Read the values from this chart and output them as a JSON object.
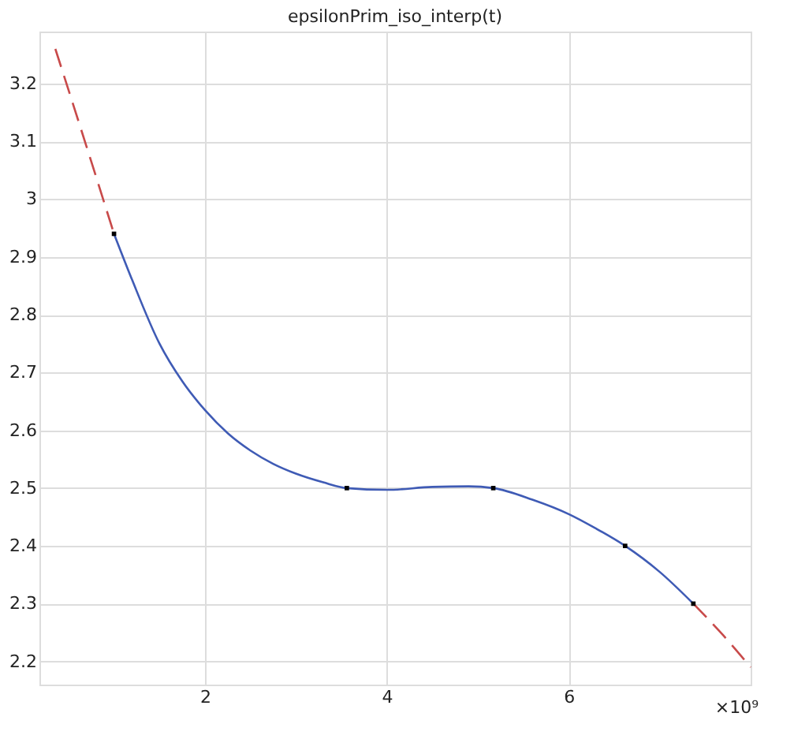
{
  "chart_data": {
    "type": "line",
    "title": "epsilonPrim_iso_interp(t)",
    "series": [
      {
        "color": "#3f5bb5",
        "line_style": "solid",
        "x": [
          1.0,
          1.2,
          1.5,
          1.75,
          2.0,
          2.25,
          2.5,
          2.75,
          3.0,
          3.3,
          3.56,
          4.0,
          4.5,
          4.9,
          5.17,
          5.6,
          6.0,
          6.3,
          6.62,
          7.0,
          7.37
        ],
        "values": [
          2.94,
          2.86,
          2.75,
          2.685,
          2.635,
          2.595,
          2.565,
          2.542,
          2.525,
          2.51,
          2.5,
          2.497,
          2.502,
          2.503,
          2.5,
          2.48,
          2.455,
          2.43,
          2.4,
          2.355,
          2.3
        ]
      },
      {
        "color": "#c84a4a",
        "line_style": "dashed",
        "x": [
          0.355,
          0.7,
          1.0
        ],
        "values": [
          3.26,
          3.09,
          2.94
        ]
      },
      {
        "color": "#c84a4a",
        "line_style": "dashed",
        "x": [
          7.37,
          7.7,
          8.0
        ],
        "values": [
          2.3,
          2.245,
          2.19
        ]
      },
      {
        "type": "scatter",
        "color": "#000000",
        "marker": "square",
        "x": [
          1.0,
          3.56,
          5.17,
          6.62,
          7.37
        ],
        "values": [
          2.94,
          2.5,
          2.5,
          2.4,
          2.3
        ]
      }
    ],
    "xlim": [
      0.18,
      8.0
    ],
    "xticks": [
      2,
      4,
      6
    ],
    "ylim": [
      2.16,
      3.29
    ],
    "yticks": [
      2.2,
      2.3,
      2.4,
      2.5,
      2.6,
      2.7,
      2.8,
      2.9,
      3,
      3.1,
      3.2
    ],
    "annotations": [
      "×10⁹"
    ],
    "grid": true
  }
}
